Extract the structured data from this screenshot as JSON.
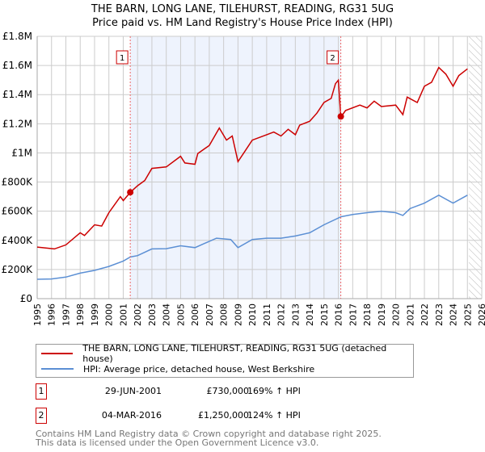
{
  "chart_data": {
    "type": "line",
    "title": "THE BARN, LONG LANE, TILEHURST, READING, RG31 5UG",
    "subtitle": "Price paid vs. HM Land Registry's House Price Index (HPI)",
    "xlim": [
      1995,
      2026
    ],
    "ylim": [
      0,
      1800000
    ],
    "x_ticks": [
      "1995",
      "1996",
      "1997",
      "1998",
      "1999",
      "2000",
      "2001",
      "2002",
      "2003",
      "2004",
      "2005",
      "2006",
      "2007",
      "2008",
      "2009",
      "2010",
      "2011",
      "2012",
      "2013",
      "2014",
      "2015",
      "2016",
      "2017",
      "2018",
      "2019",
      "2020",
      "2021",
      "2022",
      "2023",
      "2024",
      "2025",
      "2026"
    ],
    "y_ticks": [
      {
        "value": 0,
        "label": "£0"
      },
      {
        "value": 200000,
        "label": "£200K"
      },
      {
        "value": 400000,
        "label": "£400K"
      },
      {
        "value": 600000,
        "label": "£600K"
      },
      {
        "value": 800000,
        "label": "£800K"
      },
      {
        "value": 1000000,
        "label": "£1M"
      },
      {
        "value": 1200000,
        "label": "£1.2M"
      },
      {
        "value": 1400000,
        "label": "£1.4M"
      },
      {
        "value": 1600000,
        "label": "£1.6M"
      },
      {
        "value": 1800000,
        "label": "£1.8M"
      }
    ],
    "grid": true,
    "shaded_range": [
      2001.49,
      2016.17
    ],
    "forecast_hatch_from": 2025.1,
    "series": [
      {
        "name": "THE BARN, LONG LANE, TILEHURST, READING, RG31 5UG (detached house)",
        "color": "#cc0000",
        "x": [
          1995,
          1996.2,
          1997,
          1998,
          1998.3,
          1999,
          1999.5,
          2000,
          2000.8,
          2001,
          2001.5,
          2002,
          2002.5,
          2003,
          2004,
          2005,
          2005.3,
          2006,
          2006.2,
          2007,
          2007.7,
          2008.2,
          2008.6,
          2009,
          2009.5,
          2010,
          2011,
          2011.5,
          2012,
          2012.5,
          2013,
          2013.3,
          2014,
          2014.5,
          2015,
          2015.5,
          2015.8,
          2016,
          2016.17,
          2016.5,
          2017.5,
          2018,
          2018.5,
          2019,
          2020,
          2020.5,
          2020.8,
          2021.5,
          2022,
          2022.5,
          2023,
          2023.5,
          2024,
          2024.4,
          2025
        ],
        "y": [
          354000,
          341000,
          369000,
          452000,
          433000,
          507000,
          498000,
          590000,
          700000,
          673000,
          730000,
          775000,
          811000,
          894000,
          904000,
          977000,
          931000,
          922000,
          996000,
          1051000,
          1171000,
          1088000,
          1116000,
          940000,
          1014000,
          1088000,
          1125000,
          1143000,
          1116000,
          1162000,
          1125000,
          1190000,
          1217000,
          1273000,
          1346000,
          1374000,
          1475000,
          1499000,
          1245000,
          1291000,
          1328000,
          1309000,
          1355000,
          1318000,
          1328000,
          1263000,
          1383000,
          1346000,
          1457000,
          1485000,
          1586000,
          1540000,
          1457000,
          1531000,
          1577000
        ]
      },
      {
        "name": "HPI: Average price, detached house, West Berkshire",
        "color": "#5b8fd4",
        "x": [
          1995,
          1996,
          1997,
          1998,
          1999,
          2000,
          2001,
          2001.5,
          2002,
          2003,
          2004,
          2005,
          2006,
          2007.5,
          2008.5,
          2009,
          2010,
          2011,
          2012,
          2013,
          2014,
          2015,
          2016.2,
          2017,
          2018,
          2019,
          2020,
          2020.5,
          2021,
          2022,
          2023,
          2024,
          2025
        ],
        "y": [
          133000,
          135000,
          148000,
          175000,
          194000,
          221000,
          258000,
          286000,
          295000,
          341000,
          343000,
          363000,
          350000,
          415000,
          406000,
          350000,
          406000,
          415000,
          415000,
          430000,
          452000,
          507000,
          562000,
          577000,
          590000,
          599000,
          590000,
          571000,
          618000,
          655000,
          710000,
          655000,
          710000
        ]
      }
    ],
    "sales": [
      {
        "id": "1",
        "x": 2001.49,
        "value": 730000,
        "date": "29-JUN-2001",
        "price": "£730,000",
        "hpi_change": "169% ↑ HPI"
      },
      {
        "id": "2",
        "x": 2016.17,
        "value": 1250000,
        "date": "04-MAR-2016",
        "price": "£1,250,000",
        "hpi_change": "124% ↑ HPI"
      }
    ]
  },
  "legend": {
    "property": "THE BARN, LONG LANE, TILEHURST, READING, RG31 5UG (detached house)",
    "hpi": "HPI: Average price, detached house, West Berkshire"
  },
  "footer": {
    "line1": "Contains HM Land Registry data © Crown copyright and database right 2025.",
    "line2": "This data is licensed under the Open Government Licence v3.0."
  },
  "colors": {
    "property": "#cc0000",
    "hpi": "#5b8fd4",
    "shade": "#eef3fd",
    "grid": "#cccccc"
  }
}
